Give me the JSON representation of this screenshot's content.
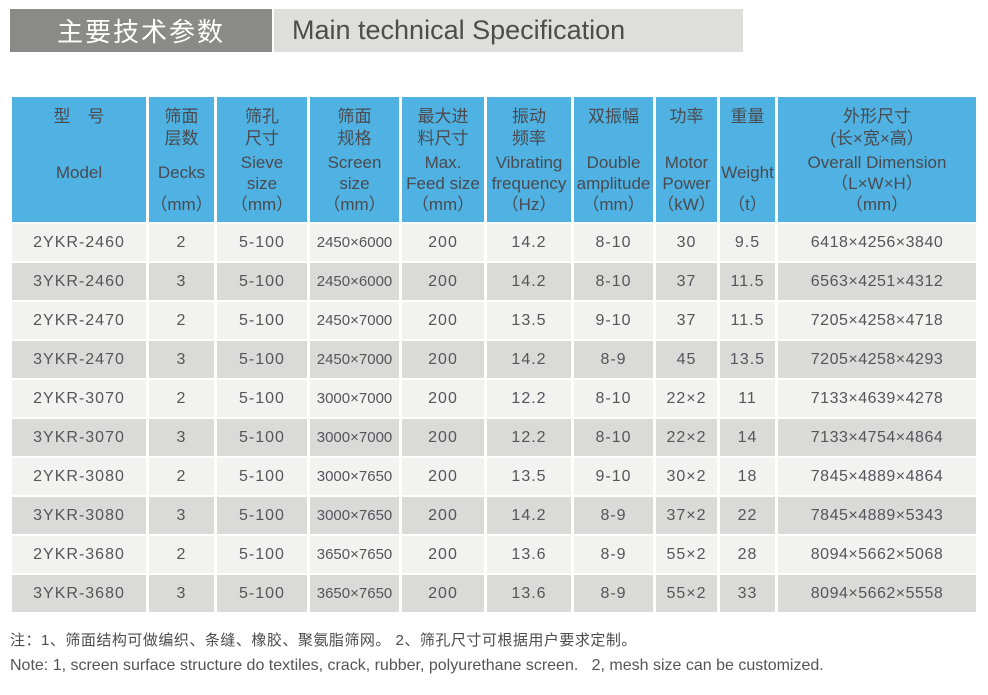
{
  "title": {
    "zh": "主要技术参数",
    "en": "Main technical Specification"
  },
  "table": {
    "columns": [
      {
        "zh": "型　号",
        "en": "Model",
        "unit": ""
      },
      {
        "zh": "筛面\n层数",
        "en": "Decks",
        "unit": "（mm）"
      },
      {
        "zh": "筛孔\n尺寸",
        "en": "Sieve\nsize",
        "unit": "（mm）"
      },
      {
        "zh": "筛面\n规格",
        "en": "Screen\nsize",
        "unit": "（mm）"
      },
      {
        "zh": "最大进\n料尺寸",
        "en": "Max.\nFeed size",
        "unit": "（mm）"
      },
      {
        "zh": "振动\n频率",
        "en": "Vibrating\nfrequency",
        "unit": "（Hz）"
      },
      {
        "zh": "双振幅",
        "en": "Double\namplitude",
        "unit": "（mm）"
      },
      {
        "zh": "功率",
        "en": "Motor\nPower",
        "unit": "（kW）"
      },
      {
        "zh": "重量",
        "en": "Weight",
        "unit": "（t）"
      },
      {
        "zh": "外形尺寸\n(长×宽×高）",
        "en": "Overall Dimension\n（L×W×H）",
        "unit": "（mm）"
      }
    ],
    "rows": [
      [
        "2YKR-2460",
        "2",
        "5-100",
        "2450×6000",
        "200",
        "14.2",
        "8-10",
        "30",
        "9.5",
        "6418×4256×3840"
      ],
      [
        "3YKR-2460",
        "3",
        "5-100",
        "2450×6000",
        "200",
        "14.2",
        "8-10",
        "37",
        "11.5",
        "6563×4251×4312"
      ],
      [
        "2YKR-2470",
        "2",
        "5-100",
        "2450×7000",
        "200",
        "13.5",
        "9-10",
        "37",
        "11.5",
        "7205×4258×4718"
      ],
      [
        "3YKR-2470",
        "3",
        "5-100",
        "2450×7000",
        "200",
        "14.2",
        "8-9",
        "45",
        "13.5",
        "7205×4258×4293"
      ],
      [
        "2YKR-3070",
        "2",
        "5-100",
        "3000×7000",
        "200",
        "12.2",
        "8-10",
        "22×2",
        "11",
        "7133×4639×4278"
      ],
      [
        "3YKR-3070",
        "3",
        "5-100",
        "3000×7000",
        "200",
        "12.2",
        "8-10",
        "22×2",
        "14",
        "7133×4754×4864"
      ],
      [
        "2YKR-3080",
        "2",
        "5-100",
        "3000×7650",
        "200",
        "13.5",
        "9-10",
        "30×2",
        "18",
        "7845×4889×4864"
      ],
      [
        "3YKR-3080",
        "3",
        "5-100",
        "3000×7650",
        "200",
        "14.2",
        "8-9",
        "37×2",
        "22",
        "7845×4889×5343"
      ],
      [
        "2YKR-3680",
        "2",
        "5-100",
        "3650×7650",
        "200",
        "13.6",
        "8-9",
        "55×2",
        "28",
        "8094×5662×5068"
      ],
      [
        "3YKR-3680",
        "3",
        "5-100",
        "3650×7650",
        "200",
        "13.6",
        "8-9",
        "55×2",
        "33",
        "8094×5662×5558"
      ]
    ]
  },
  "notes": {
    "zh": "注：1、筛面结构可做编织、条缝、橡胶、聚氨脂筛网。 2、筛孔尺寸可根据用户要求定制。",
    "en": "Note: 1, screen surface structure do textiles, crack, rubber, polyurethane screen.   2, mesh size can be customized."
  },
  "colors": {
    "header_blue": "#4FB2E2",
    "row_light": "#F2F2F1",
    "row_dark": "#DADAD9",
    "title_dark_bg": "#8A8A88",
    "title_light_bg": "#DEDEDD"
  }
}
